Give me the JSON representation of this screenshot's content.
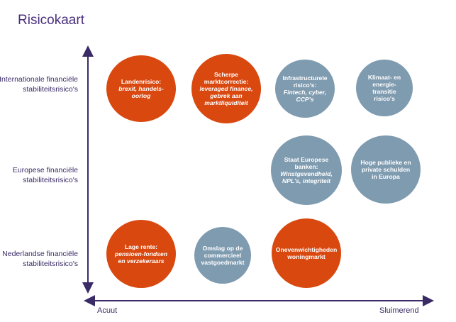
{
  "title": "Risicokaart",
  "rows": [
    "Internationale financiële stabiliteitsrisico's",
    "Europese financiële stabiliteitsrisico's",
    "Nederlandse financiële stabiliteitsrisico's"
  ],
  "x_axis": {
    "left": "Acuut",
    "right": "Sluimerend"
  },
  "colors": {
    "acute": "#d9480f",
    "dormant": "#7f9bb0",
    "axis": "#3a2b66"
  },
  "risks": [
    {
      "title": "Landenrisico:",
      "detail": "brexit, handels-oorlog",
      "color": "orange"
    },
    {
      "title": "Scherpe marktcorrectie:",
      "detail": "leveraged finance, gebrek aan marktliquiditeit",
      "color": "orange"
    },
    {
      "title": "Infrastructurele risico's:",
      "detail": "Fintech, cyber, CCP's",
      "color": "grey"
    },
    {
      "title": "Klimaat- en energie-transitie risico's",
      "detail": "",
      "color": "grey"
    },
    {
      "title": "Staat Europese banken:",
      "detail": "Winstgevendheid, NPL's, integriteit",
      "color": "grey"
    },
    {
      "title": "Hoge publieke en private schulden in Europa",
      "detail": "",
      "color": "grey"
    },
    {
      "title": "Lage rente:",
      "detail": "pensioen-fondsen en verzekeraars",
      "color": "orange"
    },
    {
      "title": "Omslag op de commercieel vastgoedmarkt",
      "detail": "",
      "color": "grey"
    },
    {
      "title": "Onevenwichtigheden woningmarkt",
      "detail": "",
      "color": "orange"
    }
  ]
}
